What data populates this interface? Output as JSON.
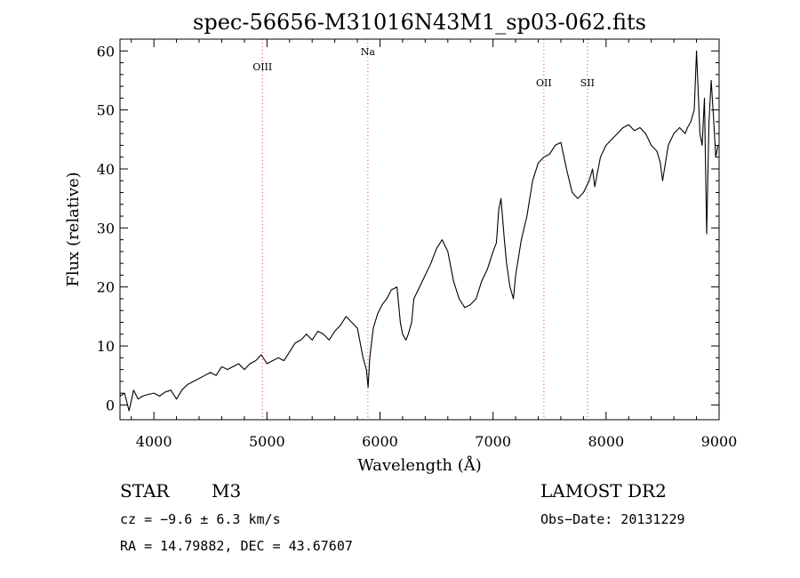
{
  "chart_data": {
    "type": "line",
    "title": "spec-56656-M31016N43M1_sp03-062.fits",
    "xlabel": "Wavelength (Å)",
    "ylabel": "Flux (relative)",
    "xlim": [
      3700,
      9000
    ],
    "ylim": [
      -2.5,
      62
    ],
    "xticks": [
      4000,
      5000,
      6000,
      7000,
      8000,
      9000
    ],
    "yticks": [
      0,
      10,
      20,
      30,
      40,
      50,
      60
    ],
    "grid": false,
    "series": [
      {
        "x": [
          3700,
          3740,
          3780,
          3820,
          3860,
          3900,
          3950,
          4000,
          4050,
          4100,
          4150,
          4200,
          4250,
          4300,
          4350,
          4400,
          4450,
          4500,
          4550,
          4600,
          4650,
          4700,
          4750,
          4800,
          4850,
          4900,
          4950,
          5000,
          5050,
          5100,
          5150,
          5200,
          5250,
          5300,
          5350,
          5400,
          5450,
          5500,
          5550,
          5600,
          5650,
          5700,
          5750,
          5800,
          5850,
          5880,
          5895,
          5910,
          5940,
          5980,
          6020,
          6060,
          6100,
          6150,
          6180,
          6200,
          6230,
          6250,
          6280,
          6300,
          6350,
          6400,
          6450,
          6500,
          6550,
          6600,
          6650,
          6700,
          6750,
          6800,
          6850,
          6900,
          6950,
          7000,
          7030,
          7050,
          7070,
          7100,
          7120,
          7150,
          7180,
          7200,
          7250,
          7300,
          7350,
          7400,
          7450,
          7500,
          7550,
          7600,
          7650,
          7700,
          7750,
          7800,
          7850,
          7880,
          7900,
          7950,
          8000,
          8050,
          8100,
          8150,
          8200,
          8250,
          8300,
          8350,
          8400,
          8450,
          8480,
          8500,
          8550,
          8600,
          8650,
          8700,
          8720,
          8750,
          8780,
          8800,
          8830,
          8850,
          8870,
          8890,
          8910,
          8930,
          8950,
          8970,
          8990
        ],
        "y": [
          1.5,
          2.0,
          -1.0,
          2.5,
          1.0,
          1.5,
          1.8,
          2.0,
          1.5,
          2.2,
          2.5,
          1.0,
          2.6,
          3.5,
          4.0,
          4.5,
          5.0,
          5.5,
          5.0,
          6.5,
          6.0,
          6.5,
          7.0,
          6.0,
          7.0,
          7.5,
          8.5,
          7.0,
          7.5,
          8.0,
          7.5,
          9.0,
          10.5,
          11.0,
          12.0,
          11.0,
          12.5,
          12.0,
          11.0,
          12.5,
          13.5,
          15.0,
          14.0,
          13.0,
          8.0,
          6.0,
          3.0,
          8.0,
          13.0,
          15.5,
          17.0,
          18.0,
          19.5,
          20.0,
          14.0,
          12.0,
          11.0,
          12.0,
          14.0,
          18.0,
          20.0,
          22.0,
          24.0,
          26.5,
          28.0,
          26.0,
          21.0,
          18.0,
          16.5,
          17.0,
          18.0,
          21.0,
          23.0,
          26.0,
          27.5,
          33.0,
          35.0,
          28.0,
          24.0,
          20.0,
          18.0,
          22.0,
          28.0,
          32.0,
          38.0,
          41.0,
          42.0,
          42.5,
          44.0,
          44.5,
          40.0,
          36.0,
          35.0,
          36.0,
          38.0,
          40.0,
          37.0,
          42.0,
          44.0,
          45.0,
          46.0,
          47.0,
          47.5,
          46.5,
          47.0,
          46.0,
          44.0,
          43.0,
          41.0,
          38.0,
          44.0,
          46.0,
          47.0,
          46.0,
          47.0,
          48.0,
          50.0,
          60.0,
          46.0,
          44.0,
          52.0,
          29.0,
          48.0,
          55.0,
          49.0,
          42.0,
          44.0
        ]
      }
    ],
    "lines": [
      {
        "label": "OIII",
        "x": 4960
      },
      {
        "label": "Na",
        "x": 5893
      },
      {
        "label": "OII",
        "x": 7450
      },
      {
        "label": "SII",
        "x": 7835
      }
    ]
  },
  "info": {
    "object": "STAR",
    "subclass": "M3",
    "survey": "LAMOST DR2",
    "cz": "cz = −9.6 ± 6.3 km/s",
    "obs_date": "Obs−Date: 20131229",
    "coords": "RA =  14.79882, DEC =  43.67607"
  }
}
